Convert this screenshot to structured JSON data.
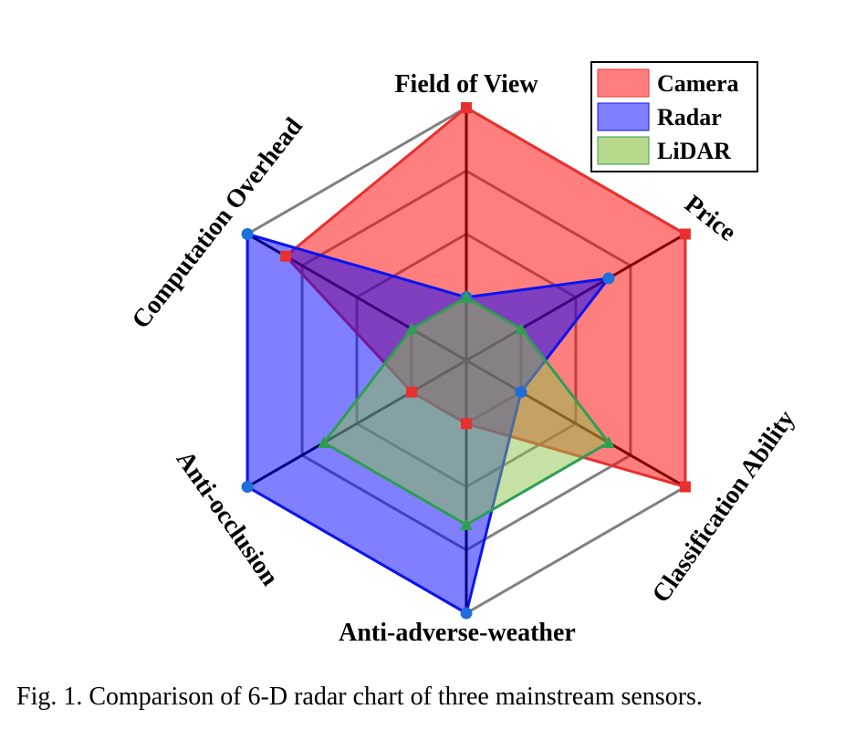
{
  "caption": "Fig. 1.  Comparison of 6-D radar chart of three mainstream sensors.",
  "chart_data": {
    "type": "radar",
    "axes": [
      "Field of View",
      "Price",
      "Classification Ability",
      "Anti-adverse-weather",
      "Anti-occlusion",
      "Computation Overhead"
    ],
    "levels": 4,
    "range": [
      0,
      4
    ],
    "grid": true,
    "legend_position": "top-right",
    "series": [
      {
        "name": "Camera",
        "values": [
          4,
          4,
          4,
          1,
          1,
          3.3
        ],
        "fill": "#ff0000",
        "stroke": "#e8302f",
        "marker": "square"
      },
      {
        "name": "Radar",
        "values": [
          1,
          2.6,
          1,
          4,
          4,
          4
        ],
        "fill": "#0000ff",
        "stroke": "#0a14f0",
        "marker": "circle"
      },
      {
        "name": "LiDAR",
        "values": [
          1,
          1,
          2.6,
          2.6,
          2.6,
          1
        ],
        "fill": "#8bc34a",
        "stroke": "#2e9e52",
        "marker": "triangle"
      }
    ],
    "colors": {
      "grid": "#808080",
      "camera_marker": "#e8302f",
      "radar_marker": "#1e6fd9",
      "lidar_marker": "#2e9e52"
    }
  }
}
